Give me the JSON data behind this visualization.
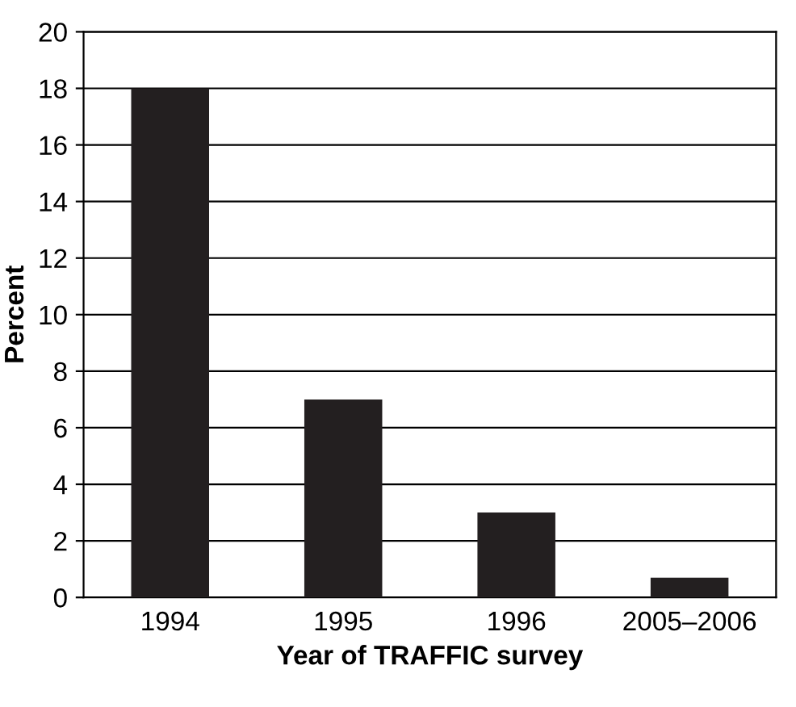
{
  "chart_data": {
    "type": "bar",
    "xlabel": "Year of TRAFFIC survey",
    "ylabel": "Percent",
    "categories": [
      "1994",
      "1995",
      "1996",
      "2005–2006"
    ],
    "values": [
      18,
      7,
      3,
      0.7
    ],
    "color": "#231f20",
    "ylim": [
      0,
      20
    ],
    "yticks": [
      0,
      2,
      4,
      6,
      8,
      10,
      12,
      14,
      16,
      18,
      20
    ],
    "grid": "y"
  }
}
